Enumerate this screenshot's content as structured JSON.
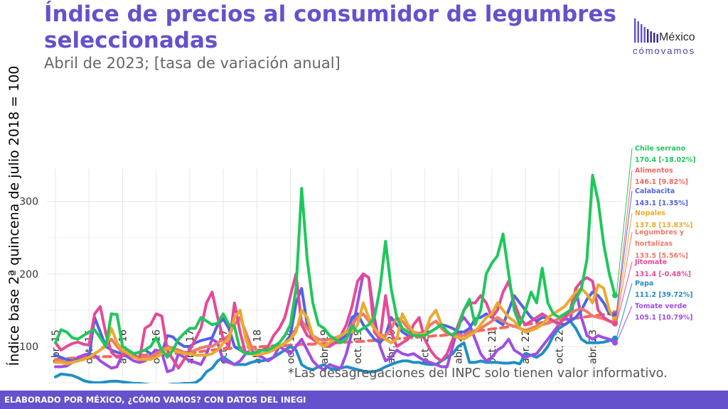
{
  "header": {
    "title": "Índice de precios al consumidor de legumbres seleccionadas",
    "subtitle": "Abril de 2023; [tasa de variación anual]"
  },
  "logo": {
    "name": "México",
    "tagline": "cómovamos",
    "colors": [
      "#6551cc",
      "#2f2a8c"
    ]
  },
  "note": "*Las desagregaciones del INPC solo tienen valor informativo.",
  "footer": {
    "text": "ELABORADO POR MÉXICO, ¿CÓMO VAMOS? CON DATOS DEL INEGI",
    "color": "#6551cc"
  },
  "chart_data": {
    "type": "line",
    "title": "Índice de precios al consumidor de legumbres seleccionadas",
    "subtitle": "Abril de 2023; [tasa de variación anual]",
    "ylabel": "Índice base 2ª quincena de julio 2018 = 100",
    "xlabel": "",
    "ylim": [
      40,
      345
    ],
    "yticks": [
      100,
      200,
      300
    ],
    "x_start": "2015-04",
    "x_end": "2023-04",
    "x_ticks": [
      "abr. 15",
      "oct. 15",
      "abr. 16",
      "oct. 16",
      "abr. 17",
      "oct. 17",
      "abr. 18",
      "oct. 18",
      "abr. 19",
      "oct. 19",
      "abr. 20",
      "oct. 20",
      "abr. 21",
      "oct. 21",
      "abr. 22",
      "oct. 22",
      "abr. 23"
    ],
    "grid": true,
    "legend": "direct labels at right end of lines",
    "series": [
      {
        "name": "Chile serrano",
        "label": "170.4 [-18.02%]",
        "color": "#1fc75b",
        "dashed": false,
        "values": [
          105,
          123,
          120,
          112,
          110,
          115,
          120,
          123,
          112,
          100,
          145,
          144,
          100,
          95,
          90,
          92,
          95,
          100,
          112,
          95,
          85,
          95,
          110,
          118,
          125,
          125,
          140,
          135,
          130,
          132,
          145,
          130,
          128,
          95,
          90,
          90,
          92,
          95,
          95,
          100,
          105,
          115,
          130,
          180,
          318,
          220,
          160,
          130,
          125,
          115,
          110,
          105,
          110,
          128,
          120,
          125,
          130,
          140,
          180,
          245,
          180,
          140,
          125,
          120,
          115,
          115,
          115,
          120,
          125,
          130,
          120,
          115,
          125,
          150,
          165,
          130,
          150,
          200,
          215,
          225,
          255,
          200,
          150,
          130,
          150,
          175,
          160,
          208,
          160,
          145,
          140,
          145,
          150,
          165,
          180,
          220,
          336,
          300,
          240,
          200,
          170.4
        ]
      },
      {
        "name": "Alimentos",
        "label": "146.1 [9.82%]",
        "color": "#f2685e",
        "dashed": true,
        "values": [
          82,
          83,
          83,
          84,
          84,
          85,
          85,
          85,
          86,
          86,
          86,
          87,
          87,
          87,
          88,
          88,
          88,
          89,
          89,
          89,
          90,
          90,
          91,
          91,
          92,
          92,
          93,
          94,
          95,
          96,
          97,
          97,
          98,
          98,
          99,
          99,
          99,
          100,
          100,
          101,
          101,
          101,
          102,
          102,
          103,
          103,
          103,
          104,
          104,
          104,
          105,
          105,
          106,
          106,
          107,
          107,
          108,
          108,
          109,
          110,
          110,
          111,
          111,
          112,
          112,
          113,
          113,
          114,
          115,
          115,
          116,
          117,
          118,
          119,
          120,
          121,
          122,
          123,
          124,
          125,
          126,
          127,
          128,
          129,
          130,
          131,
          132,
          133,
          134,
          135,
          136,
          137,
          138,
          139,
          140,
          141,
          142,
          143,
          144,
          145,
          146.1
        ]
      },
      {
        "name": "Calabacita",
        "label": "143.1 [1.35%]",
        "color": "#5063e6",
        "dashed": false,
        "values": [
          88,
          85,
          82,
          80,
          81,
          82,
          85,
          140,
          120,
          100,
          95,
          92,
          90,
          88,
          90,
          92,
          95,
          90,
          85,
          90,
          115,
          113,
          105,
          100,
          100,
          105,
          108,
          110,
          112,
          130,
          138,
          125,
          100,
          95,
          92,
          90,
          88,
          90,
          92,
          95,
          100,
          105,
          115,
          160,
          180,
          130,
          110,
          105,
          100,
          102,
          105,
          110,
          115,
          140,
          145,
          130,
          120,
          110,
          105,
          115,
          140,
          130,
          120,
          115,
          115,
          118,
          120,
          120,
          125,
          130,
          128,
          125,
          120,
          120,
          125,
          138,
          140,
          145,
          140,
          135,
          130,
          150,
          170,
          160,
          150,
          140,
          135,
          140,
          140,
          135,
          132,
          130,
          135,
          140,
          150,
          165,
          175,
          170,
          160,
          145,
          143.1
        ]
      },
      {
        "name": "Nopales",
        "label": "137.8 [13.83%]",
        "color": "#e8ab2e",
        "dashed": false,
        "values": [
          78,
          78,
          76,
          78,
          80,
          82,
          85,
          90,
          95,
          100,
          125,
          105,
          95,
          90,
          85,
          82,
          82,
          82,
          85,
          90,
          98,
          95,
          92,
          90,
          90,
          88,
          88,
          88,
          90,
          95,
          105,
          110,
          140,
          150,
          110,
          90,
          88,
          90,
          92,
          95,
          100,
          105,
          110,
          120,
          150,
          140,
          115,
          105,
          100,
          105,
          110,
          115,
          120,
          120,
          130,
          160,
          140,
          125,
          115,
          110,
          105,
          110,
          145,
          130,
          120,
          115,
          118,
          140,
          150,
          130,
          120,
          115,
          112,
          110,
          115,
          120,
          130,
          140,
          145,
          160,
          150,
          140,
          135,
          125,
          120,
          122,
          125,
          130,
          140,
          145,
          150,
          155,
          165,
          175,
          180,
          172,
          160,
          185,
          180,
          150,
          137.8
        ]
      },
      {
        "name": "Legumbres y hortalizas",
        "label": "133.5 [5.56%]",
        "color": "#f07a68",
        "dashed": false,
        "values": [
          80,
          80,
          78,
          78,
          80,
          82,
          85,
          90,
          95,
          102,
          110,
          100,
          92,
          90,
          88,
          85,
          85,
          86,
          90,
          95,
          100,
          98,
          95,
          92,
          92,
          95,
          98,
          100,
          100,
          105,
          110,
          115,
          130,
          140,
          120,
          100,
          95,
          95,
          96,
          98,
          100,
          105,
          110,
          125,
          135,
          125,
          115,
          110,
          108,
          110,
          112,
          115,
          120,
          130,
          140,
          145,
          135,
          125,
          115,
          115,
          125,
          140,
          135,
          125,
          120,
          118,
          120,
          130,
          135,
          125,
          118,
          115,
          115,
          115,
          118,
          122,
          125,
          130,
          135,
          140,
          135,
          130,
          128,
          125,
          122,
          125,
          128,
          130,
          132,
          135,
          138,
          140,
          145,
          150,
          152,
          148,
          142,
          140,
          138,
          135,
          133.5
        ]
      },
      {
        "name": "Jitomate",
        "label": "131.4 [-0.48%]",
        "color": "#e54a96",
        "dashed": false,
        "values": [
          105,
          95,
          100,
          104,
          106,
          103,
          102,
          145,
          155,
          118,
          92,
          85,
          88,
          92,
          88,
          82,
          125,
          130,
          145,
          142,
          95,
          82,
          70,
          82,
          95,
          110,
          125,
          160,
          175,
          140,
          110,
          100,
          160,
          120,
          90,
          90,
          92,
          95,
          100,
          115,
          125,
          140,
          170,
          200,
          130,
          115,
          110,
          105,
          100,
          100,
          105,
          115,
          130,
          155,
          190,
          200,
          195,
          120,
          110,
          170,
          120,
          100,
          105,
          110,
          130,
          140,
          110,
          95,
          85,
          80,
          90,
          110,
          130,
          150,
          160,
          160,
          170,
          160,
          140,
          150,
          175,
          190,
          160,
          140,
          130,
          135,
          140,
          145,
          140,
          135,
          130,
          140,
          150,
          180,
          190,
          195,
          190,
          150,
          140,
          135,
          131.4
        ]
      },
      {
        "name": "Papa",
        "label": "111.2 [39.72%]",
        "color": "#1f8fc4",
        "dashed": false,
        "values": [
          58,
          62,
          61,
          60,
          57,
          53,
          51,
          50,
          50,
          51,
          52,
          52,
          51,
          50,
          49,
          49,
          48,
          47,
          47,
          47,
          47,
          48,
          48,
          49,
          49,
          50,
          55,
          65,
          70,
          80,
          85,
          80,
          75,
          75,
          75,
          78,
          80,
          80,
          82,
          85,
          90,
          95,
          100,
          95,
          75,
          70,
          68,
          72,
          75,
          70,
          68,
          70,
          72,
          70,
          68,
          66,
          65,
          65,
          68,
          72,
          75,
          78,
          80,
          80,
          78,
          78,
          76,
          75,
          75,
          80,
          85,
          90,
          100,
          105,
          78,
          78,
          80,
          78,
          78,
          78,
          77,
          77,
          78,
          76,
          90,
          88,
          85,
          90,
          100,
          115,
          125,
          130,
          135,
          125,
          110,
          105,
          105,
          105,
          106,
          108,
          111.2
        ]
      },
      {
        "name": "Tomate verde",
        "label": "105.1 [10.79%]",
        "color": "#a04de3",
        "dashed": false,
        "values": [
          72,
          72,
          73,
          78,
          85,
          88,
          90,
          88,
          80,
          75,
          70,
          72,
          90,
          85,
          80,
          78,
          80,
          88,
          95,
          92,
          65,
          68,
          90,
          85,
          80,
          78,
          75,
          90,
          110,
          105,
          80,
          78,
          75,
          80,
          90,
          95,
          88,
          85,
          80,
          85,
          100,
          95,
          90,
          100,
          110,
          95,
          80,
          72,
          68,
          75,
          72,
          70,
          90,
          120,
          160,
          200,
          195,
          140,
          100,
          80,
          85,
          95,
          90,
          88,
          90,
          85,
          80,
          78,
          75,
          72,
          72,
          100,
          130,
          140,
          130,
          110,
          90,
          80,
          85,
          95,
          100,
          110,
          95,
          90,
          85,
          88,
          90,
          100,
          110,
          120,
          130,
          140,
          135,
          180,
          140,
          115,
          110,
          115,
          112,
          110,
          105.1
        ]
      }
    ]
  }
}
